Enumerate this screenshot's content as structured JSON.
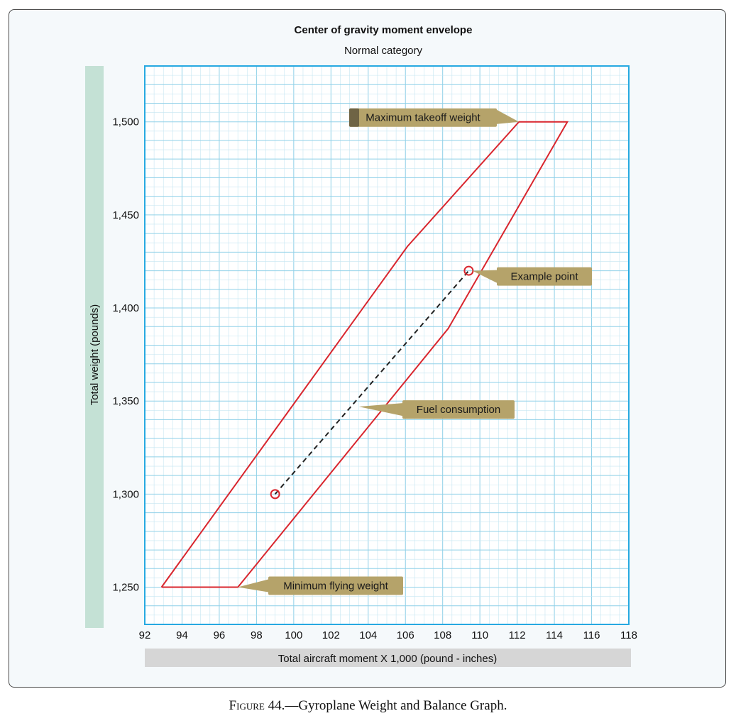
{
  "chart_data": {
    "type": "line",
    "title": "Center of gravity moment envelope",
    "subtitle": "Normal category",
    "xlabel": "Total aircraft moment X 1,000 (pound - inches)",
    "ylabel": "Total weight (pounds)",
    "xlim": [
      92,
      118
    ],
    "ylim": [
      1230,
      1530
    ],
    "x_ticks": [
      92,
      94,
      96,
      98,
      100,
      102,
      104,
      106,
      108,
      110,
      112,
      114,
      116,
      118
    ],
    "x_tick_labels": [
      "92",
      "94",
      "96",
      "98",
      "100",
      "102",
      "104",
      "106",
      "108",
      "110",
      "112",
      "114",
      "116",
      "118"
    ],
    "y_ticks": [
      1250,
      1300,
      1350,
      1400,
      1450,
      1500
    ],
    "y_tick_labels": [
      "1,250",
      "1,300",
      "1,350",
      "1,400",
      "1,450",
      "1,500"
    ],
    "grid": true,
    "series": [
      {
        "name": "",
        "color": "#d9262e",
        "points": [
          [
            92.9,
            1250
          ],
          [
            97.0,
            1250
          ],
          [
            108.3,
            1389
          ],
          [
            114.7,
            1500
          ],
          [
            112.1,
            1500
          ],
          [
            106.1,
            1433
          ],
          [
            92.9,
            1250
          ]
        ]
      },
      {
        "name": "",
        "color": "#222222",
        "dashed": true,
        "points": [
          [
            99.0,
            1300
          ],
          [
            109.4,
            1420
          ]
        ]
      }
    ],
    "markers": [
      {
        "x": 99.0,
        "y": 1300
      },
      {
        "x": 109.4,
        "y": 1420
      }
    ],
    "annotations": [
      {
        "text": "Maximum takeoff weight",
        "anchor": "pointer-right",
        "target": [
          112.1,
          1500
        ]
      },
      {
        "text": "Example point",
        "anchor": "pointer-left",
        "target": [
          109.6,
          1420
        ]
      },
      {
        "text": "Fuel consumption",
        "anchor": "pointer-left",
        "target": [
          103.5,
          1347
        ]
      },
      {
        "text": "Minimum flying weight",
        "anchor": "pointer-left",
        "target": [
          97.0,
          1250
        ]
      }
    ]
  },
  "caption": {
    "prefix": "Figure",
    "text": " 44.—Gyroplane Weight and Balance Graph."
  },
  "colors": {
    "envelope": "#d9262e",
    "grid_minor": "#c6e6f2",
    "grid_major": "#8fd0e8",
    "frame": "#27a9e1",
    "callout_fill": "#b5a36a",
    "ylabel_band": "#c4e1d5",
    "xlabel_band": "#d6d6d6"
  }
}
